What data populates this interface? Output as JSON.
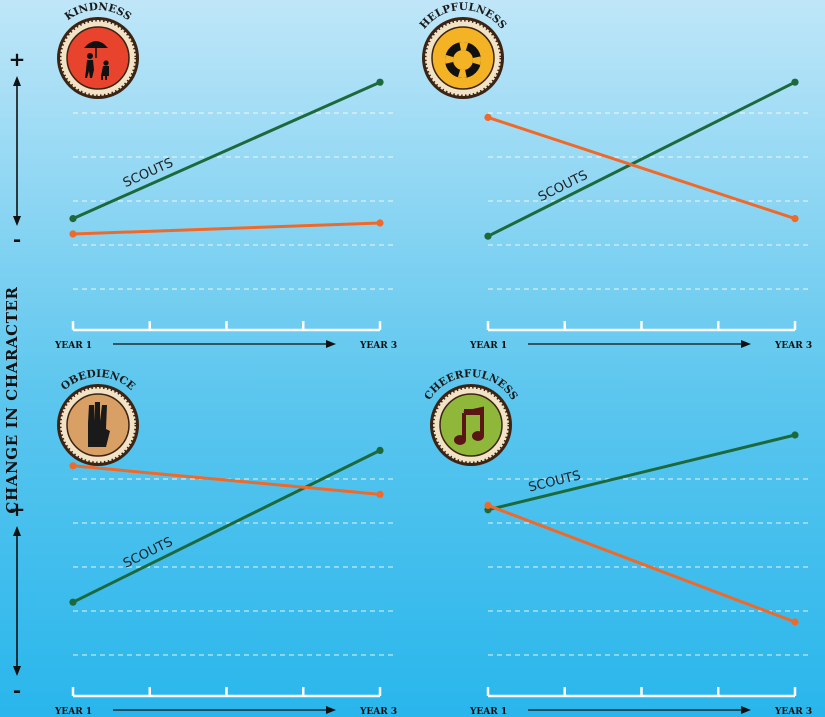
{
  "y_axis": {
    "label": "CHANGE IN CHARACTER",
    "plus": "+",
    "minus": "-"
  },
  "colors": {
    "scouts": "#1c6a3c",
    "other": "#ef6a2a",
    "axis": "#ffffff",
    "badge_text": "#1a1a1a"
  },
  "chart_data": [
    {
      "type": "line",
      "title": "KINDNESS",
      "badge": {
        "icon": "adult-child-umbrella-icon",
        "color": "#e8432c",
        "ring": "#f2e3c6"
      },
      "x": [
        "YEAR 1",
        "YEAR 3"
      ],
      "x_tick_labels": {
        "start": "YEAR",
        "start_num": "1",
        "end": "YEAR",
        "end_num": "3"
      },
      "ylim": [
        0,
        10
      ],
      "series": [
        {
          "name": "SCOUTS",
          "values": [
            3.2,
            9.4
          ]
        },
        {
          "name": "",
          "values": [
            2.5,
            3.0
          ]
        }
      ]
    },
    {
      "type": "line",
      "title": "HELPFULNESS",
      "badge": {
        "icon": "life-ring-icon",
        "color": "#f4b324",
        "ring": "#f2e3c6"
      },
      "x": [
        "YEAR 1",
        "YEAR 3"
      ],
      "x_tick_labels": {
        "start": "YEAR",
        "start_num": "1",
        "end": "YEAR",
        "end_num": "3"
      },
      "ylim": [
        0,
        10
      ],
      "series": [
        {
          "name": "SCOUTS",
          "values": [
            2.4,
            9.4
          ]
        },
        {
          "name": "",
          "values": [
            7.8,
            3.2
          ]
        }
      ]
    },
    {
      "type": "line",
      "title": "OBEDIENCE",
      "badge": {
        "icon": "scout-salute-hand-icon",
        "color": "#d9a066",
        "ring": "#f2e3c6"
      },
      "x": [
        "YEAR 1",
        "YEAR 3"
      ],
      "x_tick_labels": {
        "start": "YEAR",
        "start_num": "1",
        "end": "YEAR",
        "end_num": "3"
      },
      "ylim": [
        0,
        10
      ],
      "series": [
        {
          "name": "SCOUTS",
          "values": [
            2.4,
            9.3
          ]
        },
        {
          "name": "",
          "values": [
            8.6,
            7.3
          ]
        }
      ]
    },
    {
      "type": "line",
      "title": "CHEERFULNESS",
      "badge": {
        "icon": "music-note-icon",
        "color": "#8fb83b",
        "ring": "#f2e3c6"
      },
      "x": [
        "YEAR 1",
        "YEAR 3"
      ],
      "x_tick_labels": {
        "start": "YEAR",
        "start_num": "1",
        "end": "YEAR",
        "end_num": "3"
      },
      "ylim": [
        0,
        10
      ],
      "series": [
        {
          "name": "SCOUTS",
          "values": [
            6.6,
            10.0
          ]
        },
        {
          "name": "",
          "values": [
            6.8,
            1.5
          ]
        }
      ]
    }
  ]
}
